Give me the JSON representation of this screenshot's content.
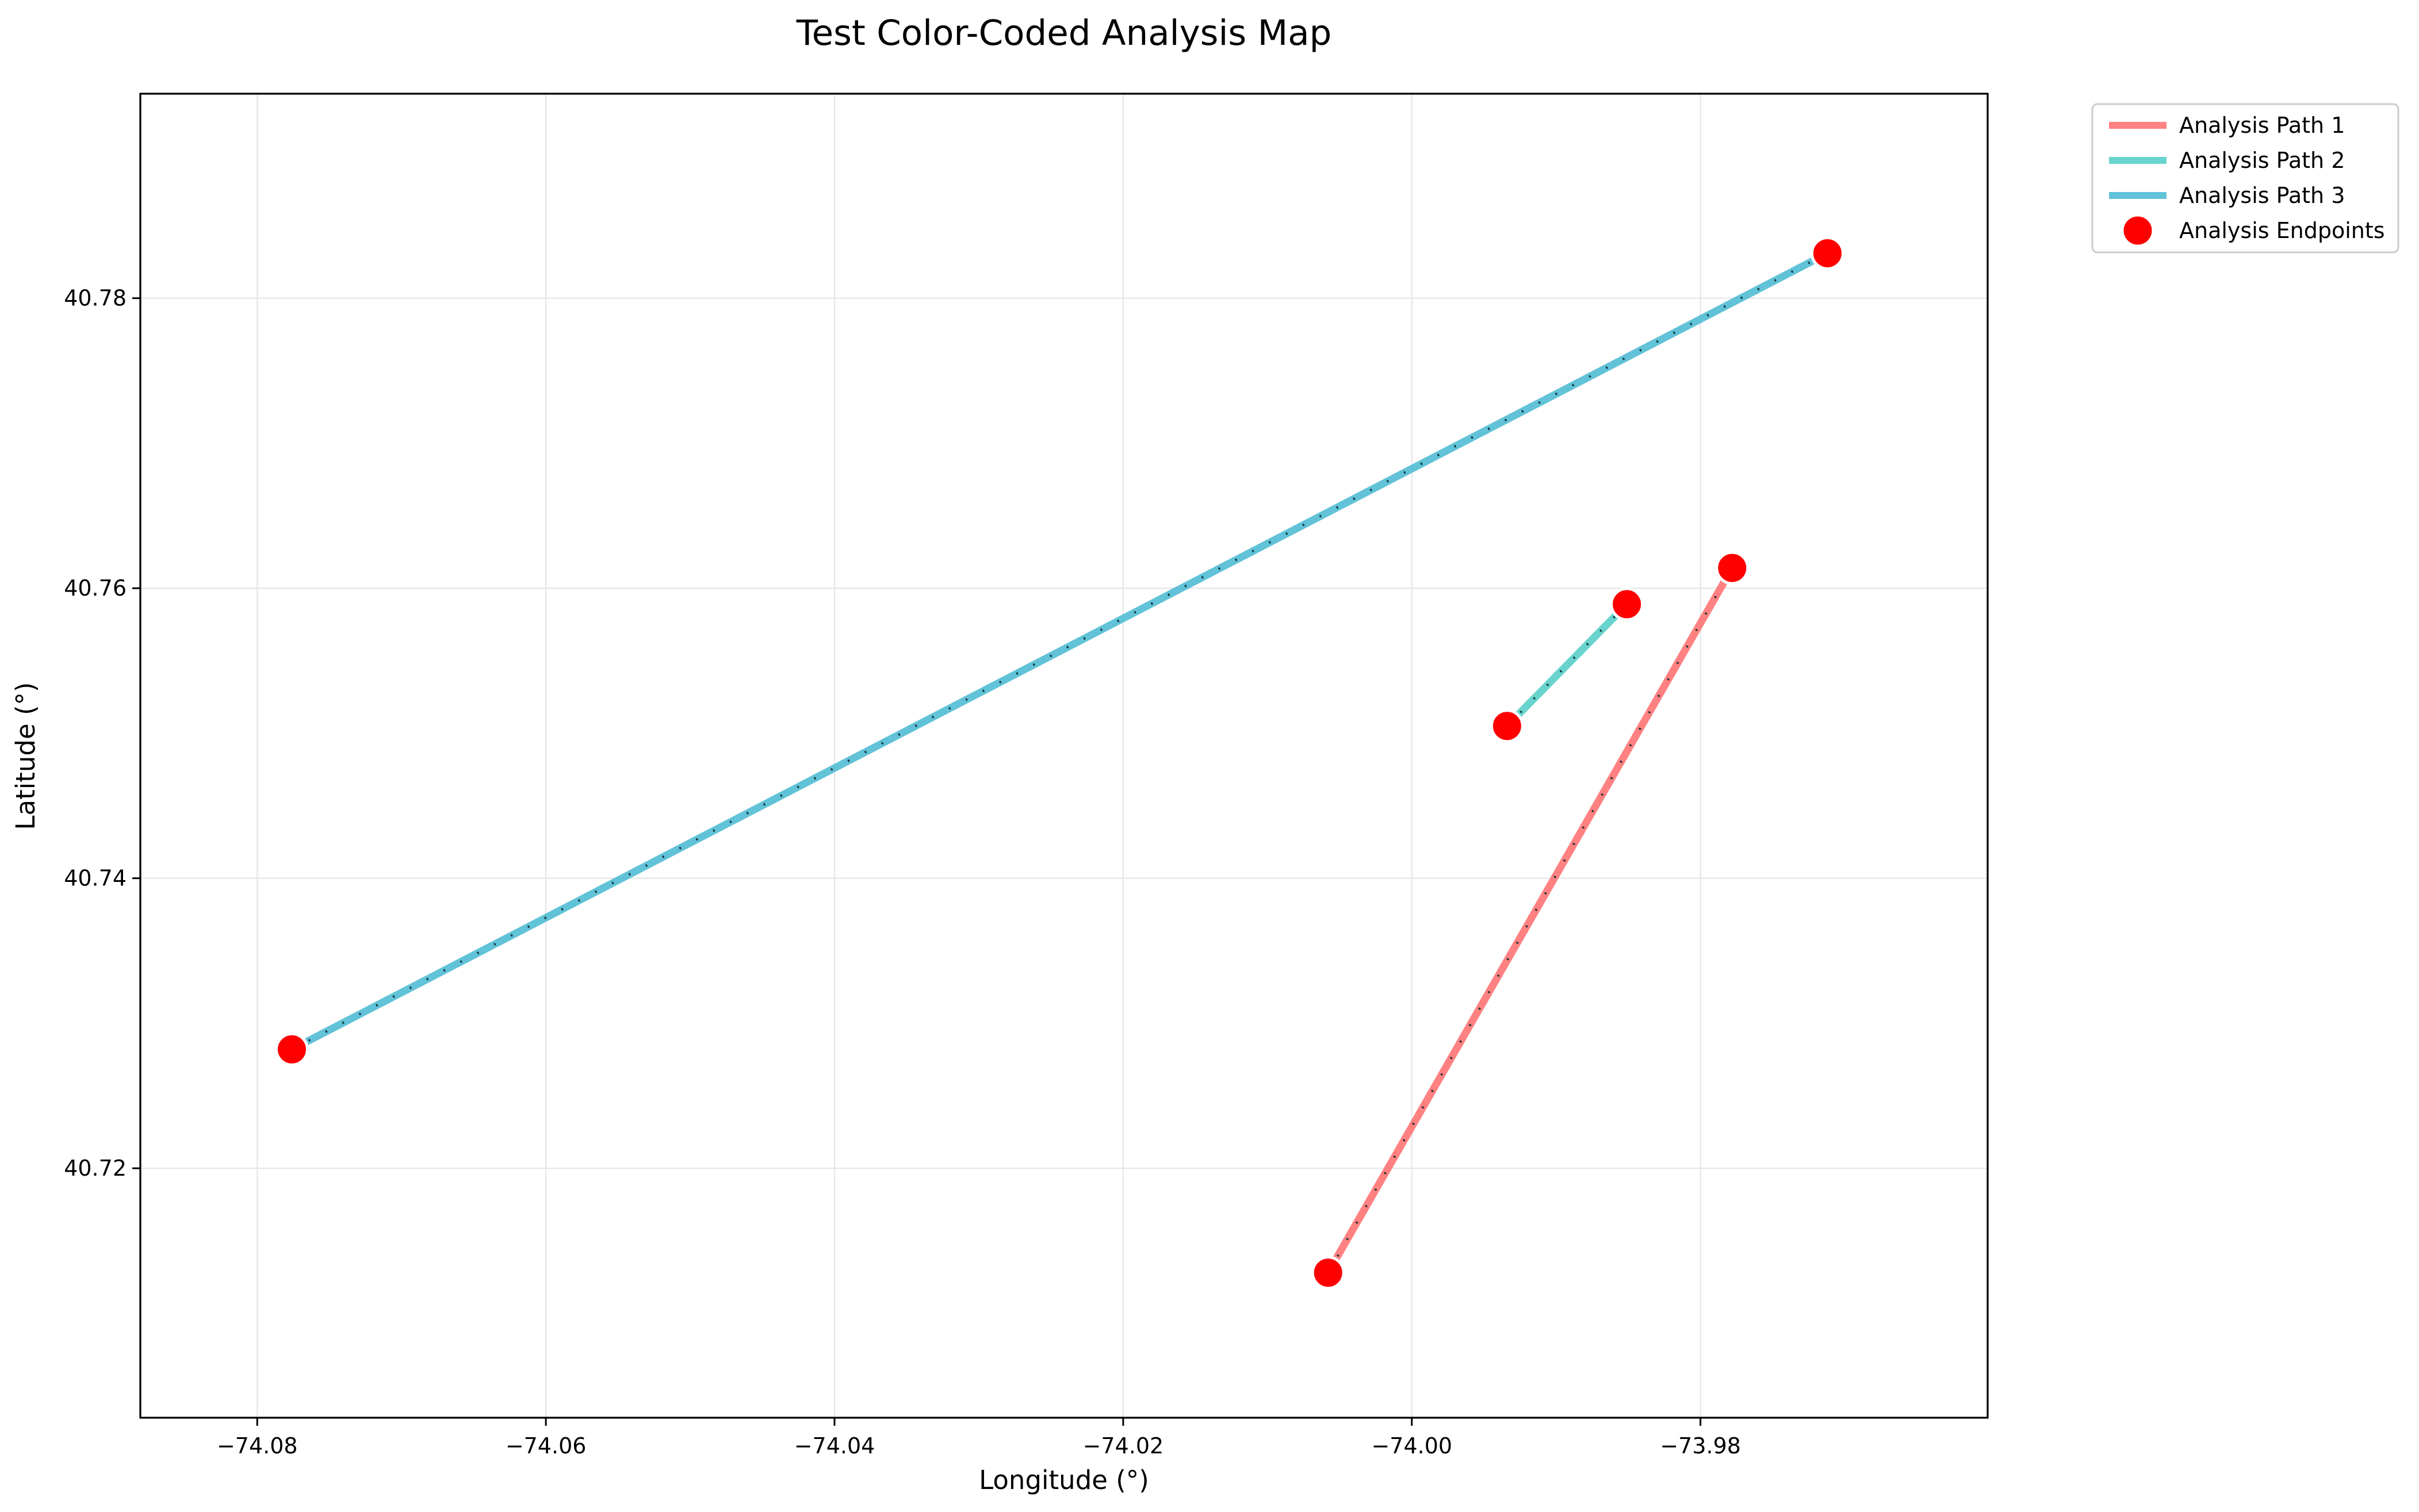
{
  "chart_data": {
    "type": "line",
    "title": "Test Color-Coded Analysis Map",
    "xlabel": "Longitude (°)",
    "ylabel": "Latitude (°)",
    "xlim": [
      -74.0881,
      -73.9601
    ],
    "ylim": [
      40.7028,
      40.7941
    ],
    "x_ticks": [
      -74.08,
      -74.06,
      -74.04,
      -74.02,
      -74.0,
      -73.98
    ],
    "x_tick_labels": [
      "−74.08",
      "−74.06",
      "−74.04",
      "−74.02",
      "−74.00",
      "−73.98"
    ],
    "y_ticks": [
      40.72,
      40.74,
      40.76,
      40.78
    ],
    "y_tick_labels": [
      "40.72",
      "40.74",
      "40.76",
      "40.78"
    ],
    "grid": true,
    "legend_placement": "outside-top-right",
    "series": [
      {
        "name": "Analysis Path 1",
        "color": "#FF6B6B",
        "x": [
          -74.0058,
          -73.9778
        ],
        "y": [
          40.7128,
          40.7614
        ]
      },
      {
        "name": "Analysis Path 2",
        "color": "#4ECDC4",
        "x": [
          -73.9934,
          -73.9851
        ],
        "y": [
          40.7505,
          40.7589
        ]
      },
      {
        "name": "Analysis Path 3",
        "color": "#45B7D1",
        "x": [
          -74.0776,
          -73.9712
        ],
        "y": [
          40.7282,
          40.7831
        ]
      }
    ],
    "endpoints": {
      "name": "Analysis Endpoints",
      "color": "#FF0000",
      "points": [
        {
          "x": -74.0058,
          "y": 40.7128
        },
        {
          "x": -73.9778,
          "y": 40.7614
        },
        {
          "x": -73.9934,
          "y": 40.7505
        },
        {
          "x": -73.9851,
          "y": 40.7589
        },
        {
          "x": -74.0776,
          "y": 40.7282
        },
        {
          "x": -73.9712,
          "y": 40.7831
        }
      ]
    }
  }
}
